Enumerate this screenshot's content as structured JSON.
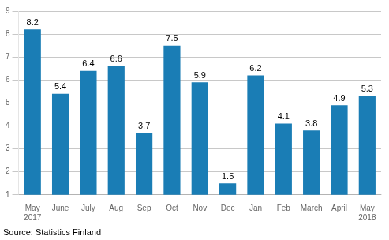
{
  "chart_data": {
    "type": "bar",
    "categories": [
      "May\n2017",
      "June",
      "July",
      "Aug",
      "Sep",
      "Oct",
      "Nov",
      "Dec",
      "Jan",
      "Feb",
      "March",
      "April",
      "May\n2018"
    ],
    "values": [
      8.2,
      5.4,
      6.4,
      6.6,
      3.7,
      7.5,
      5.9,
      1.5,
      6.2,
      4.1,
      3.8,
      4.9,
      5.3
    ],
    "color": "#1a7db5",
    "ylim": [
      1,
      9
    ],
    "yticks": [
      1,
      2,
      3,
      4,
      5,
      6,
      7,
      8,
      9
    ],
    "grid": true,
    "data_labels": true,
    "annotations": [
      "Source: Statistics Finland"
    ]
  }
}
